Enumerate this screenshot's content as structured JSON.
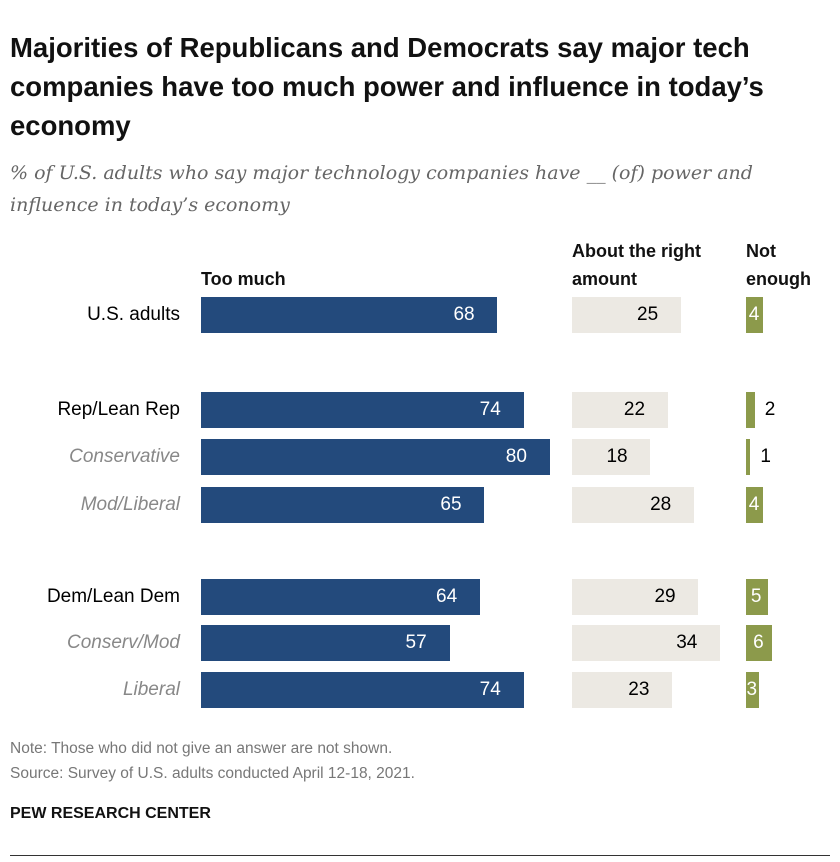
{
  "title": "Majorities of Republicans and Democrats say major tech companies have too much power and influence in today’s economy",
  "subtitle": "% of U.S. adults who say major technology companies have __ (of) power and influence in today’s economy",
  "note": "Note: Those who did not give an answer are not shown.",
  "source": "Source: Survey of U.S. adults conducted April 12-18, 2021.",
  "brand": "PEW RESEARCH CENTER",
  "colors": {
    "too_much": "#234a7c",
    "right_amount": "#ece9e3",
    "not_enough": "#8c9a4b"
  },
  "chart_data": {
    "type": "bar",
    "orientation": "horizontal",
    "stacked": false,
    "categories": [
      "U.S. adults",
      "Rep/Lean Rep",
      "Conservative",
      "Mod/Liberal",
      "Dem/Lean Dem",
      "Conserv/Mod",
      "Liberal"
    ],
    "subgroup": [
      false,
      false,
      true,
      true,
      false,
      true,
      true
    ],
    "series": [
      {
        "name": "Too much",
        "values": [
          68,
          74,
          80,
          65,
          64,
          57,
          74
        ]
      },
      {
        "name": "About the right amount",
        "values": [
          25,
          22,
          18,
          28,
          29,
          34,
          23
        ]
      },
      {
        "name": "Not enough",
        "values": [
          4,
          2,
          1,
          4,
          5,
          6,
          3
        ]
      }
    ]
  }
}
